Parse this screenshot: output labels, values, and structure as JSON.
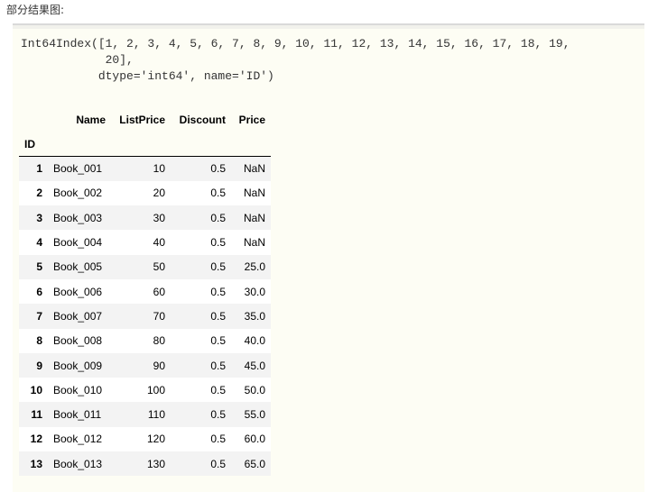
{
  "caption": "部分结果图:",
  "output": {
    "code_lines": [
      "Int64Index([1, 2, 3, 4, 5, 6, 7, 8, 9, 10, 11, 12, 13, 14, 15, 16, 17, 18, 19,",
      "            20],",
      "           dtype='int64', name='ID')"
    ]
  },
  "table": {
    "index_name": "ID",
    "columns": [
      "Name",
      "ListPrice",
      "Discount",
      "Price"
    ],
    "rows": [
      {
        "id": "1",
        "cells": [
          "Book_001",
          "10",
          "0.5",
          "NaN"
        ]
      },
      {
        "id": "2",
        "cells": [
          "Book_002",
          "20",
          "0.5",
          "NaN"
        ]
      },
      {
        "id": "3",
        "cells": [
          "Book_003",
          "30",
          "0.5",
          "NaN"
        ]
      },
      {
        "id": "4",
        "cells": [
          "Book_004",
          "40",
          "0.5",
          "NaN"
        ]
      },
      {
        "id": "5",
        "cells": [
          "Book_005",
          "50",
          "0.5",
          "25.0"
        ]
      },
      {
        "id": "6",
        "cells": [
          "Book_006",
          "60",
          "0.5",
          "30.0"
        ]
      },
      {
        "id": "7",
        "cells": [
          "Book_007",
          "70",
          "0.5",
          "35.0"
        ]
      },
      {
        "id": "8",
        "cells": [
          "Book_008",
          "80",
          "0.5",
          "40.0"
        ]
      },
      {
        "id": "9",
        "cells": [
          "Book_009",
          "90",
          "0.5",
          "45.0"
        ]
      },
      {
        "id": "10",
        "cells": [
          "Book_010",
          "100",
          "0.5",
          "50.0"
        ]
      },
      {
        "id": "11",
        "cells": [
          "Book_011",
          "110",
          "0.5",
          "55.0"
        ]
      },
      {
        "id": "12",
        "cells": [
          "Book_012",
          "120",
          "0.5",
          "60.0"
        ]
      },
      {
        "id": "13",
        "cells": [
          "Book_013",
          "130",
          "0.5",
          "65.0"
        ]
      }
    ]
  }
}
